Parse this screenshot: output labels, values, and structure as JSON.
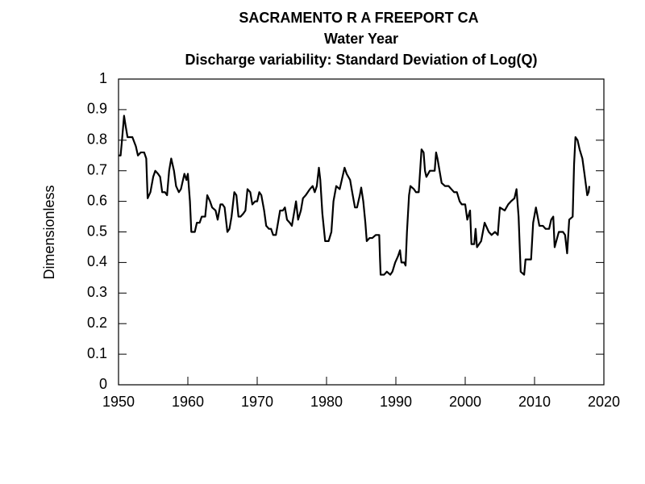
{
  "chart_data": {
    "type": "line",
    "title": "SACRAMENTO R A FREEPORT CA",
    "subtitle": "Water Year",
    "description": "Discharge variability: Standard Deviation of Log(Q)",
    "ylabel": "Dimensionless",
    "color": "#000000",
    "grid": false,
    "xlim": [
      1950,
      2020
    ],
    "xticks": [
      1950,
      1960,
      1970,
      1980,
      1990,
      2000,
      2010,
      2020
    ],
    "ylim": [
      0,
      1
    ],
    "yticks": [
      0,
      0.1,
      0.2,
      0.3,
      0.4,
      0.5,
      0.6,
      0.7,
      0.8,
      0.9,
      1
    ],
    "x": [
      1950.0,
      1950.3,
      1950.5,
      1950.8,
      1951.0,
      1951.3,
      1952.0,
      1952.5,
      1952.8,
      1953.2,
      1953.7,
      1954.0,
      1954.2,
      1954.6,
      1955.0,
      1955.3,
      1955.7,
      1956.0,
      1956.3,
      1956.7,
      1957.0,
      1957.3,
      1957.6,
      1958.0,
      1958.3,
      1958.7,
      1959.0,
      1959.5,
      1959.8,
      1960.0,
      1960.3,
      1960.5,
      1961.0,
      1961.3,
      1961.7,
      1962.0,
      1962.5,
      1962.8,
      1963.2,
      1963.5,
      1964.0,
      1964.3,
      1964.7,
      1965.0,
      1965.3,
      1965.7,
      1966.0,
      1966.3,
      1966.7,
      1967.0,
      1967.3,
      1967.6,
      1968.0,
      1968.3,
      1968.6,
      1969.0,
      1969.3,
      1969.7,
      1970.0,
      1970.3,
      1970.6,
      1971.0,
      1971.3,
      1971.7,
      1972.0,
      1972.3,
      1972.7,
      1973.0,
      1973.3,
      1973.7,
      1974.0,
      1974.3,
      1974.7,
      1975.0,
      1975.3,
      1975.6,
      1975.9,
      1976.3,
      1976.6,
      1977.0,
      1977.3,
      1977.6,
      1978.0,
      1978.3,
      1978.6,
      1978.9,
      1979.1,
      1979.4,
      1979.8,
      1980.3,
      1980.7,
      1981.0,
      1981.4,
      1981.9,
      1982.2,
      1982.6,
      1982.9,
      1983.4,
      1983.7,
      1984.1,
      1984.4,
      1984.8,
      1985.0,
      1985.3,
      1985.6,
      1985.8,
      1986.2,
      1986.6,
      1987.1,
      1987.6,
      1987.7,
      1987.8,
      1988.3,
      1988.7,
      1989.2,
      1989.5,
      1989.9,
      1990.3,
      1990.6,
      1990.8,
      1991.2,
      1991.4,
      1991.6,
      1991.9,
      1992.1,
      1992.6,
      1992.9,
      1993.3,
      1993.5,
      1993.7,
      1994.0,
      1994.2,
      1994.4,
      1994.9,
      1995.3,
      1995.6,
      1995.8,
      1996.0,
      1996.3,
      1996.6,
      1997.1,
      1997.6,
      1998.0,
      1998.4,
      1998.8,
      1999.2,
      1999.5,
      2000.0,
      2000.3,
      2000.7,
      2000.9,
      2001.3,
      2001.5,
      2001.7,
      2002.3,
      2002.8,
      2003.4,
      2003.8,
      2004.3,
      2004.7,
      2005.0,
      2005.7,
      2006.2,
      2006.6,
      2007.1,
      2007.4,
      2007.7,
      2008.0,
      2008.5,
      2008.7,
      2009.2,
      2009.5,
      2009.8,
      2010.2,
      2010.7,
      2011.2,
      2011.6,
      2012.1,
      2012.4,
      2012.7,
      2012.9,
      2013.5,
      2014.1,
      2014.4,
      2014.7,
      2015.0,
      2015.5,
      2015.7,
      2015.9,
      2016.2,
      2016.5,
      2016.9,
      2017.2,
      2017.6,
      2017.8,
      2017.9
    ],
    "values": [
      0.75,
      0.75,
      0.8,
      0.88,
      0.85,
      0.81,
      0.81,
      0.78,
      0.75,
      0.76,
      0.76,
      0.74,
      0.61,
      0.63,
      0.68,
      0.7,
      0.69,
      0.68,
      0.63,
      0.63,
      0.62,
      0.7,
      0.74,
      0.7,
      0.65,
      0.63,
      0.64,
      0.69,
      0.67,
      0.69,
      0.6,
      0.5,
      0.5,
      0.53,
      0.53,
      0.55,
      0.55,
      0.62,
      0.6,
      0.58,
      0.57,
      0.54,
      0.59,
      0.59,
      0.58,
      0.5,
      0.51,
      0.55,
      0.63,
      0.62,
      0.55,
      0.55,
      0.56,
      0.57,
      0.64,
      0.63,
      0.59,
      0.6,
      0.6,
      0.63,
      0.62,
      0.57,
      0.52,
      0.51,
      0.51,
      0.49,
      0.49,
      0.53,
      0.57,
      0.57,
      0.58,
      0.54,
      0.53,
      0.52,
      0.56,
      0.6,
      0.54,
      0.57,
      0.61,
      0.62,
      0.63,
      0.64,
      0.65,
      0.63,
      0.65,
      0.71,
      0.67,
      0.56,
      0.47,
      0.47,
      0.5,
      0.6,
      0.65,
      0.64,
      0.67,
      0.71,
      0.69,
      0.67,
      0.63,
      0.58,
      0.58,
      0.62,
      0.645,
      0.6,
      0.53,
      0.47,
      0.48,
      0.48,
      0.49,
      0.49,
      0.42,
      0.36,
      0.36,
      0.37,
      0.36,
      0.37,
      0.4,
      0.42,
      0.44,
      0.4,
      0.4,
      0.39,
      0.5,
      0.62,
      0.65,
      0.64,
      0.63,
      0.63,
      0.7,
      0.77,
      0.76,
      0.7,
      0.68,
      0.7,
      0.7,
      0.7,
      0.76,
      0.74,
      0.7,
      0.66,
      0.65,
      0.65,
      0.64,
      0.63,
      0.63,
      0.6,
      0.59,
      0.59,
      0.54,
      0.57,
      0.46,
      0.46,
      0.51,
      0.45,
      0.47,
      0.53,
      0.5,
      0.49,
      0.5,
      0.49,
      0.58,
      0.57,
      0.59,
      0.6,
      0.61,
      0.64,
      0.55,
      0.37,
      0.36,
      0.41,
      0.41,
      0.41,
      0.53,
      0.58,
      0.52,
      0.52,
      0.51,
      0.51,
      0.54,
      0.55,
      0.45,
      0.5,
      0.5,
      0.49,
      0.43,
      0.54,
      0.55,
      0.72,
      0.81,
      0.8,
      0.77,
      0.74,
      0.69,
      0.62,
      0.63,
      0.65
    ]
  }
}
